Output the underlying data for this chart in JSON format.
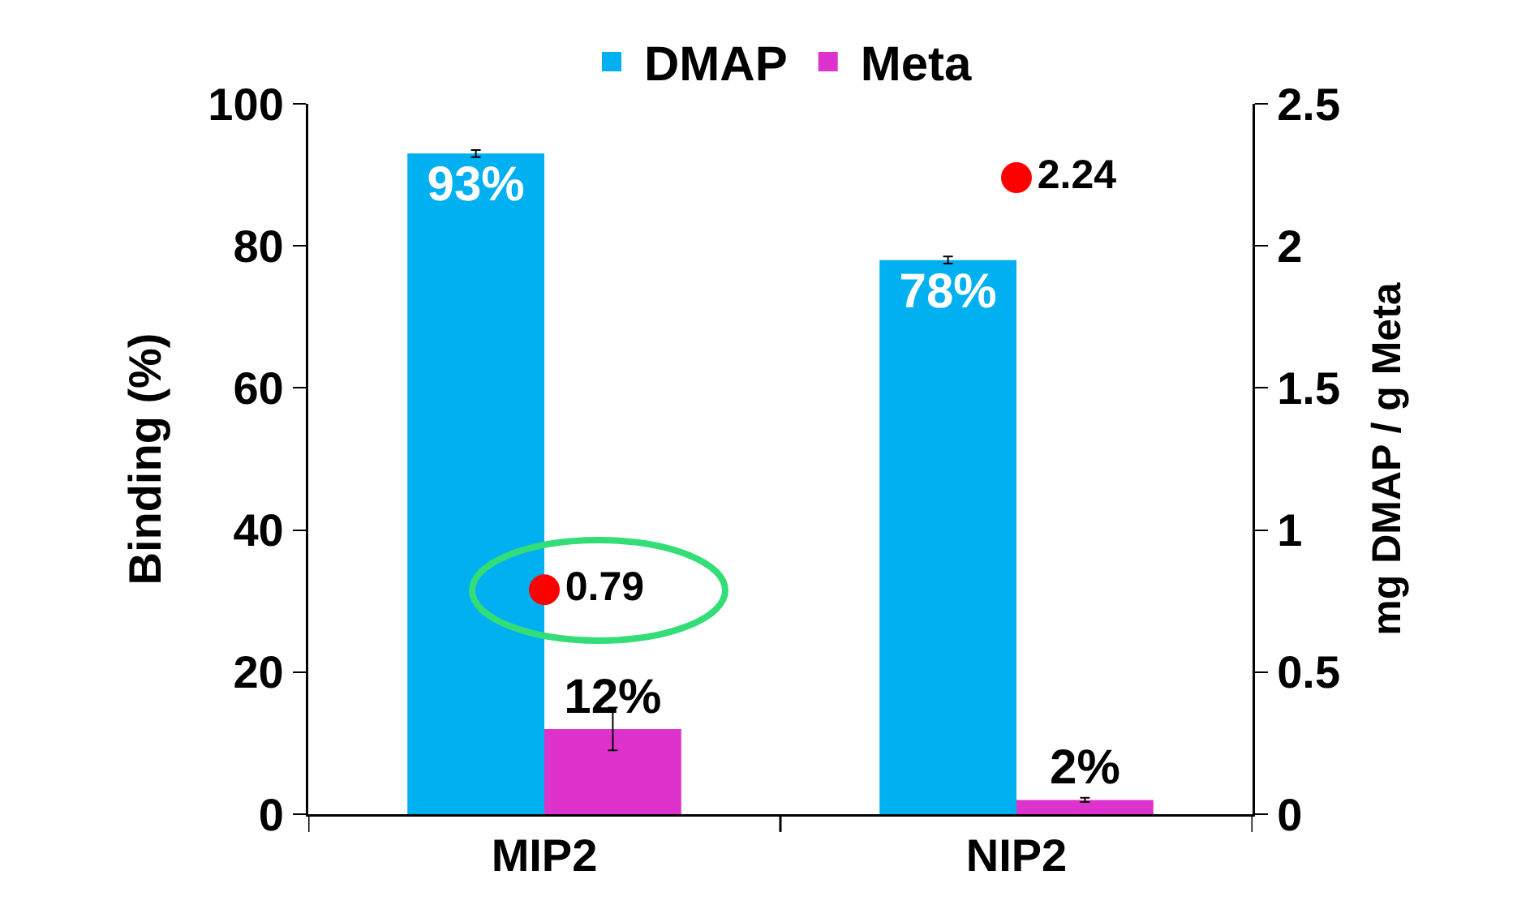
{
  "chart_data": {
    "type": "bar",
    "categories": [
      "MIP2",
      "NIP2"
    ],
    "ylabel": "Binding (%)",
    "y2label": "mg DMAP / g Meta",
    "ylim": [
      0,
      100
    ],
    "yticks": [
      0,
      20,
      40,
      60,
      80,
      100
    ],
    "y2lim": [
      0,
      2.5
    ],
    "y2ticks": [
      0,
      0.5,
      1,
      1.5,
      2,
      2.5
    ],
    "legend": "top",
    "grid": false,
    "series": [
      {
        "name": "DMAP",
        "color": "#00b0f0",
        "values": [
          93,
          78
        ],
        "errors": [
          0.5,
          0.5
        ],
        "value_labels": [
          "93%",
          "78%"
        ]
      },
      {
        "name": "Meta",
        "color": "#dd33cc",
        "values": [
          12,
          2
        ],
        "errors": [
          3,
          0.3
        ],
        "value_labels": [
          "12%",
          "2%"
        ]
      },
      {
        "type": "scatter",
        "axis": "y2",
        "color": "#ff0000",
        "marker": "circle",
        "x": [
          "MIP2",
          "NIP2"
        ],
        "values": [
          0.79,
          2.24
        ],
        "value_labels": [
          "0.79",
          "2.24"
        ]
      }
    ]
  }
}
